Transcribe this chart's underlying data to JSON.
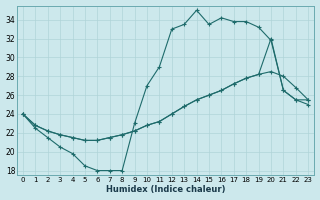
{
  "xlabel": "Humidex (Indice chaleur)",
  "bg_color": "#cce8ec",
  "line_color": "#1e6b6b",
  "grid_color": "#b0d4d8",
  "xlim": [
    -0.5,
    23.5
  ],
  "ylim": [
    17.5,
    35.5
  ],
  "xticks": [
    0,
    1,
    2,
    3,
    4,
    5,
    6,
    7,
    8,
    9,
    10,
    11,
    12,
    13,
    14,
    15,
    16,
    17,
    18,
    19,
    20,
    21,
    22,
    23
  ],
  "yticks": [
    18,
    20,
    22,
    24,
    26,
    28,
    30,
    32,
    34
  ],
  "line1_x": [
    0,
    1,
    2,
    3,
    4,
    5,
    6,
    7,
    8,
    9,
    10,
    11,
    12,
    13,
    14,
    15,
    16,
    17,
    18,
    19,
    20,
    21,
    22,
    23
  ],
  "line1_y": [
    24.0,
    22.5,
    21.5,
    20.5,
    19.8,
    18.5,
    18.0,
    18.0,
    18.0,
    23.0,
    27.0,
    29.0,
    33.0,
    33.5,
    35.0,
    33.5,
    34.2,
    33.8,
    33.8,
    33.2,
    31.8,
    26.5,
    25.5,
    25.0
  ],
  "line2_x": [
    0,
    1,
    2,
    3,
    4,
    5,
    6,
    7,
    8,
    9,
    10,
    11,
    12,
    13,
    14,
    15,
    16,
    17,
    18,
    19,
    20,
    21,
    22,
    23
  ],
  "line2_y": [
    24.0,
    22.8,
    22.2,
    21.8,
    21.5,
    21.2,
    21.2,
    21.5,
    21.8,
    22.2,
    22.8,
    23.2,
    24.0,
    24.8,
    25.5,
    26.0,
    26.5,
    27.2,
    27.8,
    28.2,
    32.0,
    26.5,
    25.5,
    25.5
  ],
  "line3_x": [
    0,
    1,
    2,
    3,
    4,
    5,
    6,
    7,
    8,
    9,
    10,
    11,
    12,
    13,
    14,
    15,
    16,
    17,
    18,
    19,
    20,
    21,
    22,
    23
  ],
  "line3_y": [
    24.0,
    22.8,
    22.2,
    21.8,
    21.5,
    21.2,
    21.2,
    21.5,
    21.8,
    22.2,
    22.8,
    23.2,
    24.0,
    24.8,
    25.5,
    26.0,
    26.5,
    27.2,
    27.8,
    28.2,
    28.5,
    28.0,
    26.8,
    25.5
  ]
}
